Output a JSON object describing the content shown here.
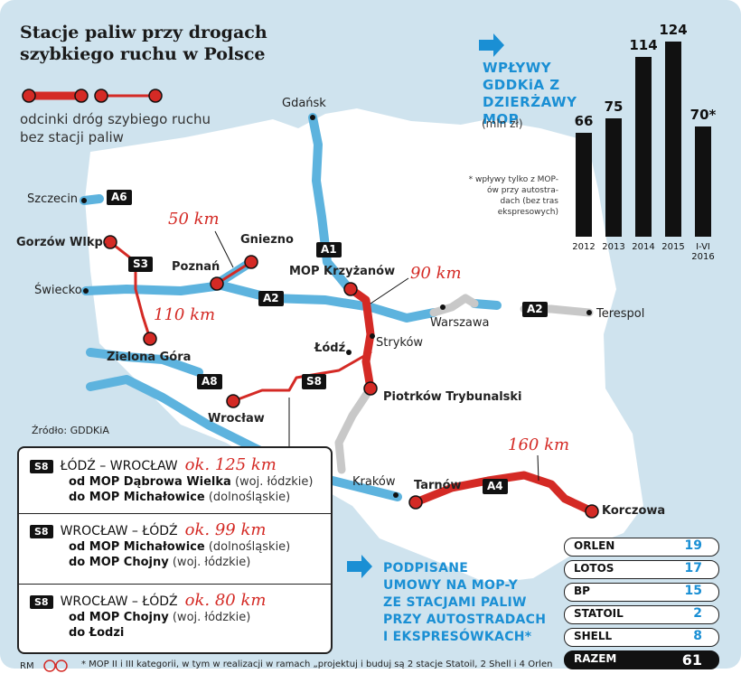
{
  "title": [
    "Stacje paliw przy drogach",
    "szybkiego ruchu w Polsce"
  ],
  "legend": {
    "lines": [
      "odcinki dróg szybiego ruchu",
      "bez stacji paliw"
    ]
  },
  "source": "Źródło: GDDKiA",
  "roads": {
    "a6": "A6",
    "s3": "S3",
    "a1": "A1",
    "a2_west": "A2",
    "a2_east": "A2",
    "a8": "A8",
    "s8": "S8",
    "a4": "A4"
  },
  "cities": {
    "gdansk": "Gdańsk",
    "szczecin": "Szczecin",
    "gorzow": "Gorzów Wlkp.",
    "gniezno": "Gniezno",
    "poznan": "Poznań",
    "swiecko": "Świecko",
    "zielona_gora": "Zielona Góra",
    "mop_krzyzanow": "MOP Krzyżanów",
    "warszawa": "Warszawa",
    "terespol": "Terespol",
    "lodz": "Łódź",
    "strykow": "Stryków",
    "piotrkow": "Piotrków Trybunalski",
    "wroclaw": "Wrocław",
    "krakow": "Kraków",
    "tarnow": "Tarnów",
    "korczowa": "Korczowa"
  },
  "distances": {
    "gniezno_poznan": "50 km",
    "s3": "110 km",
    "a1": "90 km",
    "a4": "160 km"
  },
  "chart_data": {
    "type": "bar",
    "title": "WPŁYWY GDDKiA Z DZIERŻAWY MOP",
    "unit": "(mln zł)",
    "note": "* wpływy tylko z MOP-ów przy autostra-dach (bez tras ekspresowych)",
    "categories": [
      "2012",
      "2013",
      "2014",
      "2015",
      "I-VI 2016"
    ],
    "values": [
      66,
      75,
      114,
      124,
      70
    ],
    "value_labels": [
      "66",
      "75",
      "114",
      "124",
      "70*"
    ],
    "ylim": [
      0,
      124
    ]
  },
  "routes": [
    {
      "road": "S8",
      "name": "ŁÓDŹ – WROCŁAW",
      "km": "ok. 125 km",
      "from_label": "od MOP Dąbrowa Wielka",
      "from_region": "(woj. łódzkie)",
      "to_label": "do MOP Michałowice",
      "to_region": "(dolnośląskie)"
    },
    {
      "road": "S8",
      "name": "WROCŁAW – ŁÓDŹ",
      "km": "ok. 99 km",
      "from_label": "od MOP Michałowice",
      "from_region": "(dolnośląskie)",
      "to_label": "do MOP Chojny",
      "to_region": "(woj. łódzkie)"
    },
    {
      "road": "S8",
      "name": "WROCŁAW – ŁÓDŹ",
      "km": "ok. 80 km",
      "from_label": "od MOP Chojny",
      "from_region": "(woj. łódzkie)",
      "to_label": "do Łodzi",
      "to_region": ""
    }
  ],
  "contracts": {
    "title": [
      "PODPISANE",
      "UMOWY NA MOP-Y",
      "ZE STACJAMI PALIW",
      "PRZY AUTOSTRADACH",
      "I EKSPRESÓWKACH*"
    ],
    "rows": [
      {
        "label": "ORLEN",
        "value": "19"
      },
      {
        "label": "LOTOS",
        "value": "17"
      },
      {
        "label": "BP",
        "value": "15"
      },
      {
        "label": "STATOIL",
        "value": "2"
      },
      {
        "label": "SHELL",
        "value": "8"
      }
    ],
    "total": {
      "label": "RAZEM",
      "value": "61"
    }
  },
  "footnote": "* MOP II i III kategorii, w tym w realizacji w ramach „projektuj i buduj są 2 stacje Statoil, 2 Shell i 4 Orlen",
  "credit": "RM",
  "colors": {
    "map_bg": "#cfe3ee",
    "land": "#ffffff",
    "road_blue": "#5db3de",
    "road_red": "#d42a25",
    "road_grey": "#c8c8c8",
    "accent": "#1a8fd4"
  }
}
